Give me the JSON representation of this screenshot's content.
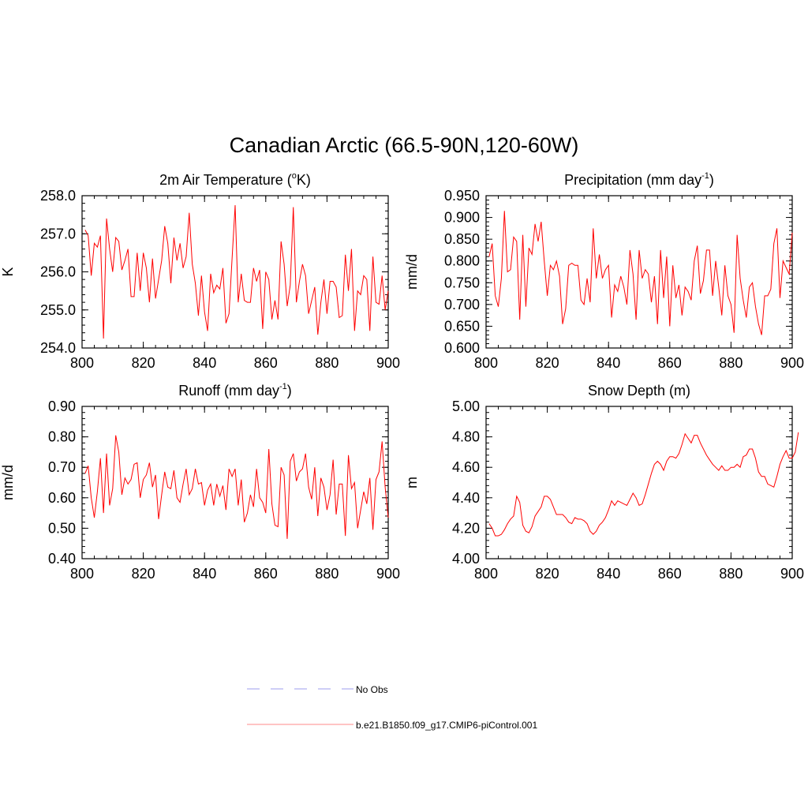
{
  "figure": {
    "title": "Canadian Arctic (66.5-90N,120-60W)"
  },
  "legend": {
    "entries": [
      {
        "label": "No Obs",
        "style": "dashed",
        "color": "#b0b0f0"
      },
      {
        "label": "b.e21.B1850.f09_g17.CMIP6-piControl.001",
        "style": "solid",
        "color": "#ffa0a0"
      }
    ]
  },
  "series_color": "#ff0000",
  "chart_data": [
    {
      "type": "line",
      "title": "2m Air Temperature (",
      "title_sup": "o",
      "title_end": "K)",
      "xlabel": "",
      "ylabel": "K",
      "xlim": [
        800,
        900
      ],
      "ylim": [
        254.0,
        258.0
      ],
      "xticks": [
        800,
        820,
        840,
        860,
        880,
        900
      ],
      "yticks": [
        254.0,
        255.0,
        256.0,
        257.0,
        258.0
      ],
      "ytick_labels": [
        "254.0",
        "255.0",
        "256.0",
        "257.0",
        "258.0"
      ],
      "x_start": 801,
      "values": [
        257.1,
        256.95,
        255.9,
        256.75,
        256.65,
        256.95,
        254.25,
        257.4,
        256.6,
        256.0,
        256.9,
        256.8,
        256.05,
        256.3,
        256.6,
        255.35,
        255.35,
        256.5,
        255.5,
        256.5,
        256.1,
        255.2,
        256.35,
        255.3,
        255.8,
        256.3,
        257.2,
        256.75,
        255.7,
        256.9,
        256.3,
        256.75,
        256.1,
        256.4,
        257.55,
        256.2,
        255.7,
        254.85,
        255.9,
        254.95,
        254.45,
        255.95,
        255.45,
        255.65,
        255.55,
        256.1,
        254.65,
        254.9,
        256.35,
        257.75,
        255.2,
        255.95,
        255.25,
        255.2,
        255.2,
        256.1,
        255.75,
        256.05,
        254.5,
        256.0,
        255.8,
        254.75,
        255.25,
        254.75,
        256.8,
        256.2,
        255.1,
        255.65,
        257.7,
        255.2,
        255.75,
        256.2,
        255.9,
        254.9,
        255.25,
        255.6,
        254.35,
        255.2,
        255.8,
        254.9,
        255.75,
        255.75,
        255.6,
        254.8,
        254.85,
        256.45,
        255.5,
        256.6,
        254.45,
        255.5,
        255.4,
        255.9,
        255.8,
        254.45,
        256.4,
        255.2,
        255.15,
        255.9,
        255.0,
        255.5
      ]
    },
    {
      "type": "line",
      "title": "Precipitation (mm day",
      "title_sup": "-1",
      "title_end": ")",
      "xlabel": "",
      "ylabel": "mm/d",
      "xlim": [
        800,
        900
      ],
      "ylim": [
        0.6,
        0.95
      ],
      "xticks": [
        800,
        820,
        840,
        860,
        880,
        900
      ],
      "yticks": [
        0.6,
        0.65,
        0.7,
        0.75,
        0.8,
        0.85,
        0.9,
        0.95
      ],
      "ytick_labels": [
        "0.600",
        "0.650",
        "0.700",
        "0.750",
        "0.800",
        "0.850",
        "0.900",
        "0.950"
      ],
      "x_start": 801,
      "values": [
        0.81,
        0.84,
        0.72,
        0.695,
        0.76,
        0.915,
        0.775,
        0.78,
        0.855,
        0.845,
        0.665,
        0.86,
        0.695,
        0.83,
        0.815,
        0.885,
        0.845,
        0.89,
        0.8,
        0.72,
        0.79,
        0.78,
        0.8,
        0.765,
        0.655,
        0.69,
        0.79,
        0.795,
        0.79,
        0.79,
        0.71,
        0.7,
        0.76,
        0.705,
        0.875,
        0.76,
        0.815,
        0.76,
        0.78,
        0.79,
        0.67,
        0.745,
        0.73,
        0.765,
        0.74,
        0.7,
        0.825,
        0.77,
        0.665,
        0.825,
        0.76,
        0.78,
        0.77,
        0.705,
        0.765,
        0.655,
        0.825,
        0.715,
        0.81,
        0.65,
        0.79,
        0.715,
        0.745,
        0.675,
        0.74,
        0.73,
        0.71,
        0.8,
        0.835,
        0.725,
        0.755,
        0.825,
        0.825,
        0.72,
        0.8,
        0.74,
        0.675,
        0.79,
        0.72,
        0.7,
        0.635,
        0.86,
        0.76,
        0.71,
        0.67,
        0.74,
        0.75,
        0.695,
        0.655,
        0.63,
        0.72,
        0.72,
        0.735,
        0.84,
        0.875,
        0.715,
        0.8,
        0.785,
        0.77,
        0.865
      ]
    },
    {
      "type": "line",
      "title": "Runoff (mm day",
      "title_sup": "-1",
      "title_end": ")",
      "xlabel": "",
      "ylabel": "mm/d",
      "xlim": [
        800,
        900
      ],
      "ylim": [
        0.4,
        0.9
      ],
      "xticks": [
        800,
        820,
        840,
        860,
        880,
        900
      ],
      "yticks": [
        0.4,
        0.5,
        0.6,
        0.7,
        0.8,
        0.9
      ],
      "ytick_labels": [
        "0.40",
        "0.50",
        "0.60",
        "0.70",
        "0.80",
        "0.90"
      ],
      "x_start": 801,
      "values": [
        0.68,
        0.705,
        0.6,
        0.535,
        0.62,
        0.73,
        0.55,
        0.745,
        0.575,
        0.63,
        0.805,
        0.75,
        0.61,
        0.665,
        0.645,
        0.66,
        0.71,
        0.715,
        0.6,
        0.66,
        0.675,
        0.715,
        0.635,
        0.675,
        0.53,
        0.61,
        0.685,
        0.635,
        0.63,
        0.69,
        0.6,
        0.585,
        0.645,
        0.695,
        0.61,
        0.63,
        0.695,
        0.645,
        0.65,
        0.575,
        0.625,
        0.645,
        0.575,
        0.645,
        0.605,
        0.64,
        0.56,
        0.695,
        0.67,
        0.695,
        0.575,
        0.66,
        0.52,
        0.55,
        0.61,
        0.57,
        0.695,
        0.6,
        0.585,
        0.55,
        0.76,
        0.58,
        0.51,
        0.505,
        0.7,
        0.675,
        0.465,
        0.72,
        0.745,
        0.655,
        0.685,
        0.695,
        0.745,
        0.635,
        0.595,
        0.7,
        0.54,
        0.665,
        0.635,
        0.56,
        0.61,
        0.725,
        0.545,
        0.645,
        0.645,
        0.475,
        0.74,
        0.63,
        0.65,
        0.5,
        0.56,
        0.62,
        0.58,
        0.665,
        0.495,
        0.66,
        0.685,
        0.785,
        0.635,
        0.535
      ]
    },
    {
      "type": "line",
      "title": "Snow Depth (m)",
      "title_sup": "",
      "title_end": "",
      "xlabel": "",
      "ylabel": "m",
      "xlim": [
        800,
        900
      ],
      "ylim": [
        4.0,
        5.0
      ],
      "xticks": [
        800,
        820,
        840,
        860,
        880,
        900
      ],
      "yticks": [
        4.0,
        4.2,
        4.4,
        4.6,
        4.8,
        5.0
      ],
      "ytick_labels": [
        "4.00",
        "4.20",
        "4.40",
        "4.60",
        "4.80",
        "5.00"
      ],
      "x_start": 801,
      "values": [
        4.23,
        4.2,
        4.15,
        4.15,
        4.16,
        4.19,
        4.23,
        4.26,
        4.28,
        4.41,
        4.37,
        4.22,
        4.18,
        4.17,
        4.21,
        4.28,
        4.31,
        4.34,
        4.41,
        4.41,
        4.39,
        4.34,
        4.29,
        4.29,
        4.29,
        4.27,
        4.24,
        4.23,
        4.27,
        4.26,
        4.26,
        4.25,
        4.23,
        4.18,
        4.16,
        4.18,
        4.22,
        4.24,
        4.27,
        4.32,
        4.38,
        4.35,
        4.38,
        4.37,
        4.36,
        4.35,
        4.39,
        4.43,
        4.4,
        4.35,
        4.36,
        4.42,
        4.49,
        4.56,
        4.62,
        4.64,
        4.62,
        4.58,
        4.64,
        4.67,
        4.67,
        4.66,
        4.69,
        4.75,
        4.82,
        4.79,
        4.76,
        4.81,
        4.81,
        4.76,
        4.72,
        4.68,
        4.65,
        4.62,
        4.6,
        4.58,
        4.61,
        4.58,
        4.58,
        4.6,
        4.6,
        4.62,
        4.6,
        4.67,
        4.68,
        4.72,
        4.72,
        4.66,
        4.57,
        4.54,
        4.54,
        4.49,
        4.48,
        4.47,
        4.54,
        4.62,
        4.67,
        4.71,
        4.66,
        4.66,
        4.7,
        4.83
      ]
    }
  ]
}
